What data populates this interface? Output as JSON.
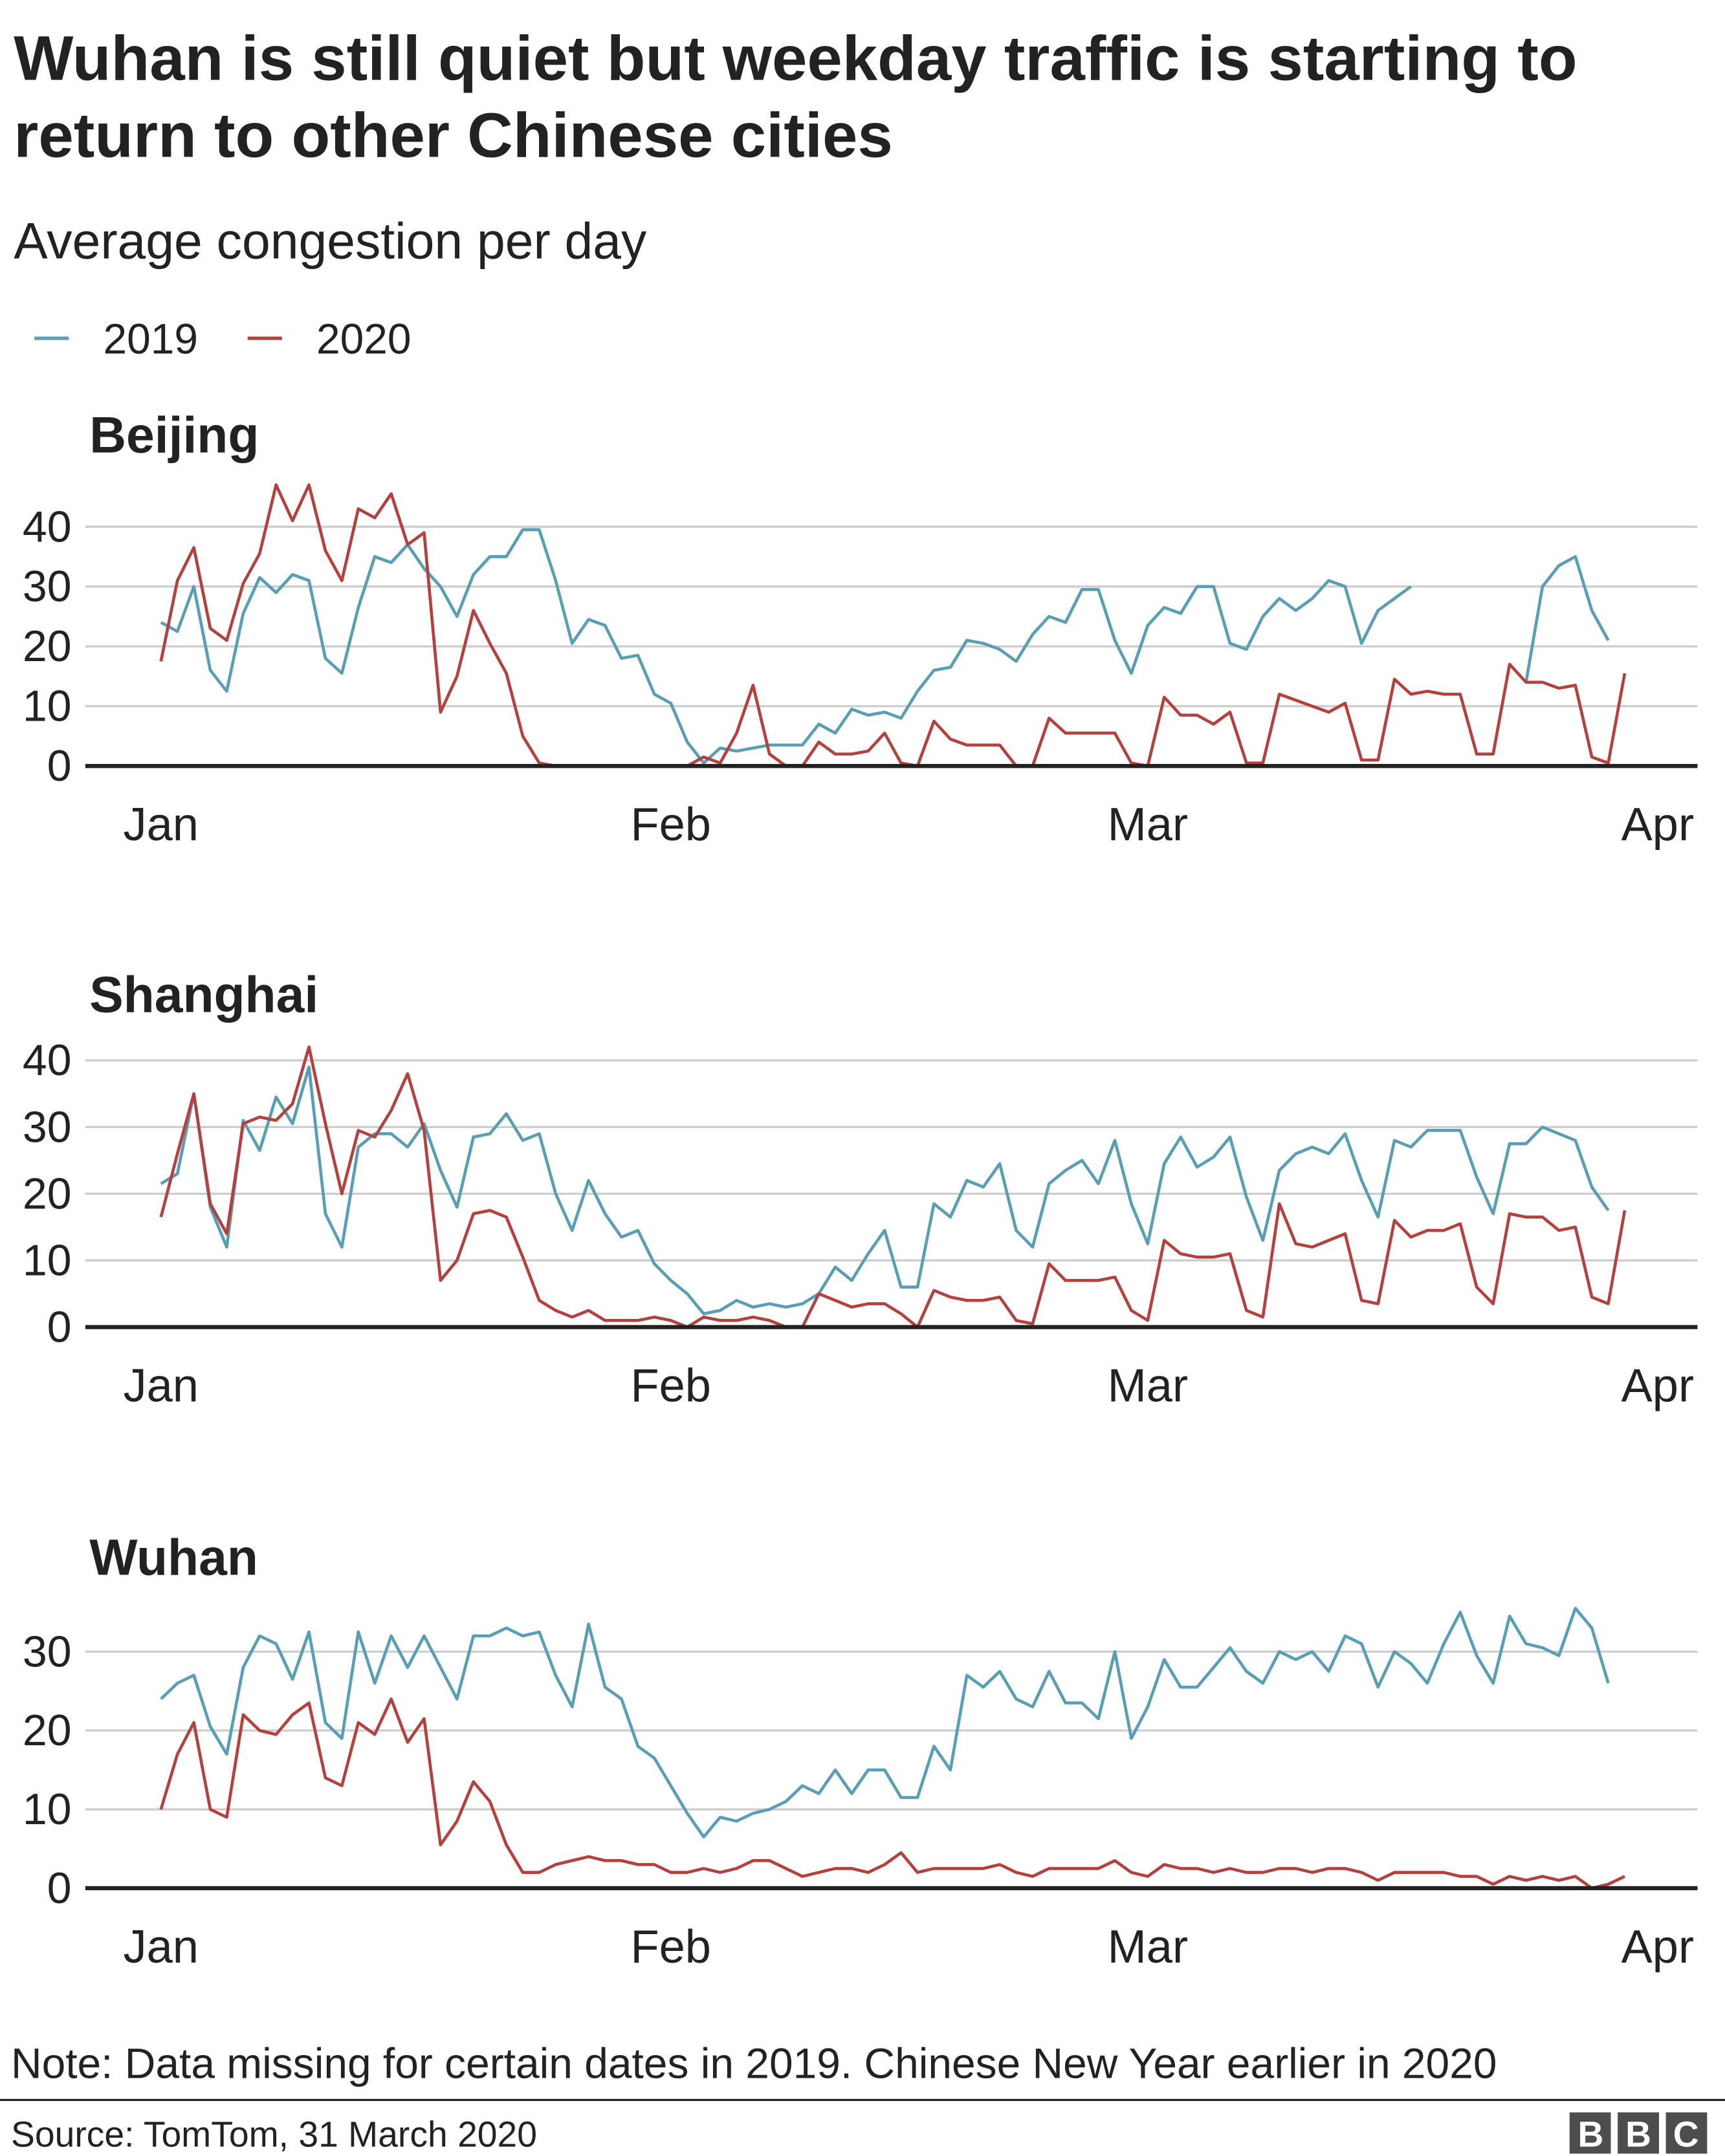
{
  "title": "Wuhan is still quiet but weekday traffic is starting to return to other Chinese cities",
  "subtitle": "Average congestion per day",
  "note": "Note: Data missing for certain dates in 2019. Chinese New Year earlier in 2020",
  "source": "Source: TomTom, 31 March 2020",
  "logo": "BBC",
  "chart_data": [
    {
      "type": "line",
      "title": "Beijing",
      "categories": [
        "Jan",
        null,
        null,
        null,
        null,
        null,
        null,
        null,
        null,
        null,
        null,
        null,
        null,
        null,
        null,
        null,
        null,
        null,
        null,
        null,
        null,
        null,
        null,
        null,
        null,
        null,
        null,
        null,
        null,
        null,
        null,
        "Feb",
        null,
        null,
        null,
        null,
        null,
        null,
        null,
        null,
        null,
        null,
        null,
        null,
        null,
        null,
        null,
        null,
        null,
        null,
        null,
        null,
        null,
        null,
        null,
        null,
        null,
        null,
        null,
        null,
        "Mar",
        null,
        null,
        null,
        null,
        null,
        null,
        null,
        null,
        null,
        null,
        null,
        null,
        null,
        null,
        null,
        null,
        null,
        null,
        null,
        null,
        null,
        null,
        null,
        null,
        null,
        null,
        null,
        null,
        null,
        null,
        "Apr"
      ],
      "ylim": [
        0,
        48
      ],
      "yticks": [
        0,
        10,
        20,
        30,
        40
      ],
      "grid": true,
      "series": [
        {
          "name": "2019",
          "color": "#589fb6",
          "values": [
            24,
            22.5,
            30,
            16,
            12.5,
            25.5,
            31.5,
            29,
            32,
            31,
            18,
            15.5,
            26.5,
            35,
            34,
            37,
            33,
            30,
            25,
            32,
            35,
            35,
            39.5,
            39.5,
            31,
            20.5,
            24.5,
            23.5,
            18,
            18.5,
            12,
            10.5,
            4,
            0.5,
            3,
            2.5,
            3,
            3.5,
            3.5,
            3.5,
            7,
            5.5,
            9.5,
            8.5,
            9,
            8,
            12.5,
            16,
            16.5,
            21,
            20.5,
            19.5,
            17.5,
            22,
            25,
            24,
            29.5,
            29.5,
            21,
            15.5,
            23.5,
            26.5,
            25.5,
            30,
            30,
            20.5,
            19.5,
            25,
            28,
            26,
            28,
            31,
            30,
            20.5,
            26,
            28,
            30,
            null,
            null,
            null,
            null,
            null,
            null,
            14,
            30,
            33.5,
            35,
            26,
            21,
            null,
            null,
            null
          ]
        },
        {
          "name": "2020",
          "color": "#b5413f",
          "values": [
            17.5,
            31,
            36.5,
            23,
            21,
            30.5,
            35.5,
            47,
            41,
            47,
            36,
            31,
            43,
            41.5,
            45.5,
            37,
            39,
            9,
            15,
            26,
            20.5,
            15.5,
            5,
            0.5,
            0,
            0,
            0,
            0,
            0,
            0,
            0,
            0,
            0,
            1.5,
            0.5,
            5.5,
            13.5,
            2,
            0,
            0,
            4,
            2,
            2,
            2.5,
            5.5,
            0.5,
            0,
            7.5,
            4.5,
            3.5,
            3.5,
            3.5,
            0,
            0,
            8,
            5.5,
            5.5,
            5.5,
            5.5,
            0.5,
            0,
            11.5,
            8.5,
            8.5,
            7,
            9,
            0.5,
            0.5,
            12,
            11,
            10,
            9,
            10.5,
            1,
            1,
            14.5,
            12,
            12.5,
            12,
            12,
            2,
            2,
            17,
            14,
            14,
            13,
            13.5,
            1.5,
            0.5,
            15.5,
            null,
            null
          ]
        }
      ]
    },
    {
      "type": "line",
      "title": "Shanghai",
      "categories": [
        "Jan",
        null,
        null,
        null,
        null,
        null,
        null,
        null,
        null,
        null,
        null,
        null,
        null,
        null,
        null,
        null,
        null,
        null,
        null,
        null,
        null,
        null,
        null,
        null,
        null,
        null,
        null,
        null,
        null,
        null,
        null,
        "Feb",
        null,
        null,
        null,
        null,
        null,
        null,
        null,
        null,
        null,
        null,
        null,
        null,
        null,
        null,
        null,
        null,
        null,
        null,
        null,
        null,
        null,
        null,
        null,
        null,
        null,
        null,
        null,
        null,
        "Mar",
        null,
        null,
        null,
        null,
        null,
        null,
        null,
        null,
        null,
        null,
        null,
        null,
        null,
        null,
        null,
        null,
        null,
        null,
        null,
        null,
        null,
        null,
        null,
        null,
        null,
        null,
        null,
        null,
        null,
        null,
        "Apr"
      ],
      "ylim": [
        0,
        43
      ],
      "yticks": [
        0,
        10,
        20,
        30,
        40
      ],
      "grid": true,
      "series": [
        {
          "color": "#589fb6",
          "values": [
            21.5,
            23,
            35,
            18,
            12,
            31,
            26.5,
            34.5,
            30.5,
            39,
            17,
            12,
            27,
            29,
            29,
            27,
            30.5,
            23.5,
            18,
            28.5,
            29,
            32,
            28,
            29,
            20,
            14.5,
            22,
            17,
            13.5,
            14.5,
            9.5,
            7,
            5,
            2,
            2.5,
            4,
            3,
            3.5,
            3,
            3.5,
            5,
            9,
            7,
            11,
            14.5,
            6,
            6,
            18.5,
            16.5,
            22,
            21,
            24.5,
            14.5,
            12,
            21.5,
            23.5,
            25,
            21.5,
            28,
            18.5,
            12.5,
            24.5,
            28.5,
            24,
            25.5,
            28.5,
            19.5,
            13,
            23.5,
            26,
            27,
            26,
            29,
            22,
            16.5,
            28,
            27,
            29.5,
            29.5,
            29.5,
            22.5,
            17,
            27.5,
            27.5,
            30,
            29,
            28,
            21,
            17.5,
            null,
            null,
            null
          ]
        },
        {
          "color": "#b5413f",
          "values": [
            16.5,
            26,
            35,
            18.5,
            14,
            30.5,
            31.5,
            31,
            33.5,
            42,
            30.5,
            20,
            29.5,
            28.5,
            32.5,
            38,
            29.5,
            7,
            10,
            17,
            17.5,
            16.5,
            10.5,
            4,
            2.5,
            1.5,
            2.5,
            1,
            1,
            1,
            1.5,
            1,
            0,
            1.5,
            1,
            1,
            1.5,
            1,
            0,
            0,
            5,
            4,
            3,
            3.5,
            3.5,
            2,
            0,
            5.5,
            4.5,
            4,
            4,
            4.5,
            1,
            0.5,
            9.5,
            7,
            7,
            7,
            7.5,
            2.5,
            1,
            13,
            11,
            10.5,
            10.5,
            11,
            2.5,
            1.5,
            18.5,
            12.5,
            12,
            13,
            14,
            4,
            3.5,
            16,
            13.5,
            14.5,
            14.5,
            15.5,
            6,
            3.5,
            17,
            16.5,
            16.5,
            14.5,
            15,
            4.5,
            3.5,
            17.5,
            null,
            null
          ]
        }
      ]
    },
    {
      "type": "line",
      "title": "Wuhan",
      "categories": [
        "Jan",
        null,
        null,
        null,
        null,
        null,
        null,
        null,
        null,
        null,
        null,
        null,
        null,
        null,
        null,
        null,
        null,
        null,
        null,
        null,
        null,
        null,
        null,
        null,
        null,
        null,
        null,
        null,
        null,
        null,
        null,
        "Feb",
        null,
        null,
        null,
        null,
        null,
        null,
        null,
        null,
        null,
        null,
        null,
        null,
        null,
        null,
        null,
        null,
        null,
        null,
        null,
        null,
        null,
        null,
        null,
        null,
        null,
        null,
        null,
        null,
        "Mar",
        null,
        null,
        null,
        null,
        null,
        null,
        null,
        null,
        null,
        null,
        null,
        null,
        null,
        null,
        null,
        null,
        null,
        null,
        null,
        null,
        null,
        null,
        null,
        null,
        null,
        null,
        null,
        null,
        null,
        null,
        "Apr"
      ],
      "ylim": [
        0,
        36
      ],
      "yticks": [
        0,
        10,
        20,
        30
      ],
      "grid": true,
      "series": [
        {
          "color": "#589fb6",
          "values": [
            24,
            26,
            27,
            20.5,
            17,
            28,
            32,
            31,
            26.5,
            32.5,
            21,
            19,
            32.5,
            26,
            32,
            28,
            32,
            28,
            24,
            32,
            32,
            33,
            32,
            32.5,
            27,
            23,
            33.5,
            25.5,
            24,
            18,
            16.5,
            13,
            9.5,
            6.5,
            9,
            8.5,
            9.5,
            10,
            11,
            13,
            12,
            15,
            12,
            15,
            15,
            11.5,
            11.5,
            18,
            15,
            27,
            25.5,
            27.5,
            24,
            23,
            27.5,
            23.5,
            23.5,
            21.5,
            30,
            19,
            23,
            29,
            25.5,
            25.5,
            28,
            30.5,
            27.5,
            26,
            30,
            29,
            30,
            27.5,
            32,
            31,
            25.5,
            30,
            28.5,
            26,
            31,
            35,
            29.5,
            26,
            34.5,
            31,
            30.5,
            29.5,
            35.5,
            33,
            26,
            null,
            null,
            null
          ]
        },
        {
          "color": "#b5413f",
          "values": [
            10,
            17,
            21,
            10,
            9,
            22,
            20,
            19.5,
            22,
            23.5,
            14,
            13,
            21,
            19.5,
            24,
            18.5,
            21.5,
            5.5,
            8.5,
            13.5,
            11,
            5.5,
            2,
            2,
            3,
            3.5,
            4,
            3.5,
            3.5,
            3,
            3,
            2,
            2,
            2.5,
            2,
            2.5,
            3.5,
            3.5,
            2.5,
            1.5,
            2,
            2.5,
            2.5,
            2,
            3,
            4.5,
            2,
            2.5,
            2.5,
            2.5,
            2.5,
            3,
            2,
            1.5,
            2.5,
            2.5,
            2.5,
            2.5,
            3.5,
            2,
            1.5,
            3,
            2.5,
            2.5,
            2,
            2.5,
            2,
            2,
            2.5,
            2.5,
            2,
            2.5,
            2.5,
            2,
            1,
            2,
            2,
            2,
            2,
            1.5,
            1.5,
            0.5,
            1.5,
            1,
            1.5,
            1,
            1.5,
            0,
            0.5,
            1.5,
            null,
            null
          ]
        }
      ]
    }
  ]
}
